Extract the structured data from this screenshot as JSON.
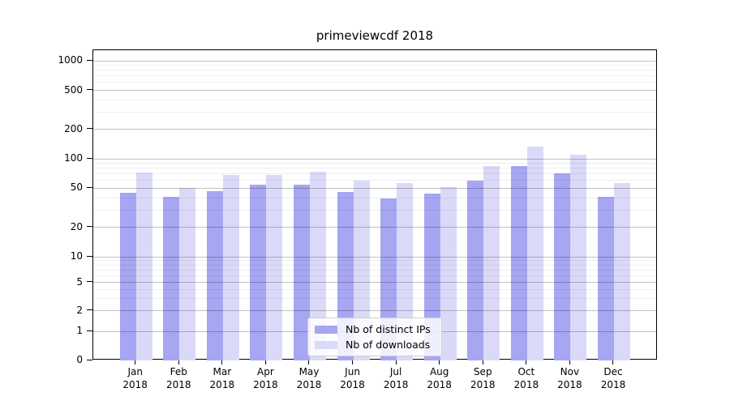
{
  "title": "primeviewcdf 2018",
  "chart_data": {
    "type": "bar",
    "title": "primeviewcdf 2018",
    "categories": [
      "Jan 2018",
      "Feb 2018",
      "Mar 2018",
      "Apr 2018",
      "May 2018",
      "Jun 2018",
      "Jul 2018",
      "Aug 2018",
      "Sep 2018",
      "Oct 2018",
      "Nov 2018",
      "Dec 2018"
    ],
    "x_months": [
      "Jan",
      "Feb",
      "Mar",
      "Apr",
      "May",
      "Jun",
      "Jul",
      "Aug",
      "Sep",
      "Oct",
      "Nov",
      "Dec"
    ],
    "x_year": "2018",
    "series": [
      {
        "key": "ips",
        "name": "Nb of distinct IPs",
        "color": "#a6a6f2",
        "values": [
          45,
          41,
          47,
          54,
          54,
          46,
          39,
          44,
          60,
          85,
          71,
          41
        ]
      },
      {
        "key": "downloads",
        "name": "Nb of downloads",
        "color": "#dadaf8",
        "values": [
          73,
          50,
          68,
          68,
          74,
          60,
          57,
          51,
          85,
          133,
          111,
          56
        ]
      }
    ],
    "yscale": "symlog",
    "ylim": [
      0,
      1300
    ],
    "yticks": [
      0,
      1,
      2,
      5,
      10,
      20,
      50,
      100,
      200,
      500,
      1000
    ],
    "ytick_labels": [
      "0",
      "1",
      "2",
      "5",
      "10",
      "20",
      "50",
      "100",
      "200",
      "500",
      "1000"
    ],
    "yminor_gridlines": [
      3,
      4,
      6,
      7,
      8,
      9,
      30,
      40,
      60,
      70,
      80,
      90,
      300,
      400,
      600,
      700,
      800,
      900
    ],
    "grid": "horizontal major and minor, drawn over bars",
    "legend_position": "lower center",
    "xlabel": "",
    "ylabel": ""
  },
  "colors": {
    "bar_ips": "#a6a6f2",
    "bar_downloads": "#dadaf8",
    "grid_major": "rgba(0,0,0,0.24)",
    "grid_minor": "rgba(0,0,0,0.065)",
    "axis": "#000000",
    "background": "#ffffff",
    "legend_border": "#cfcfcf"
  }
}
